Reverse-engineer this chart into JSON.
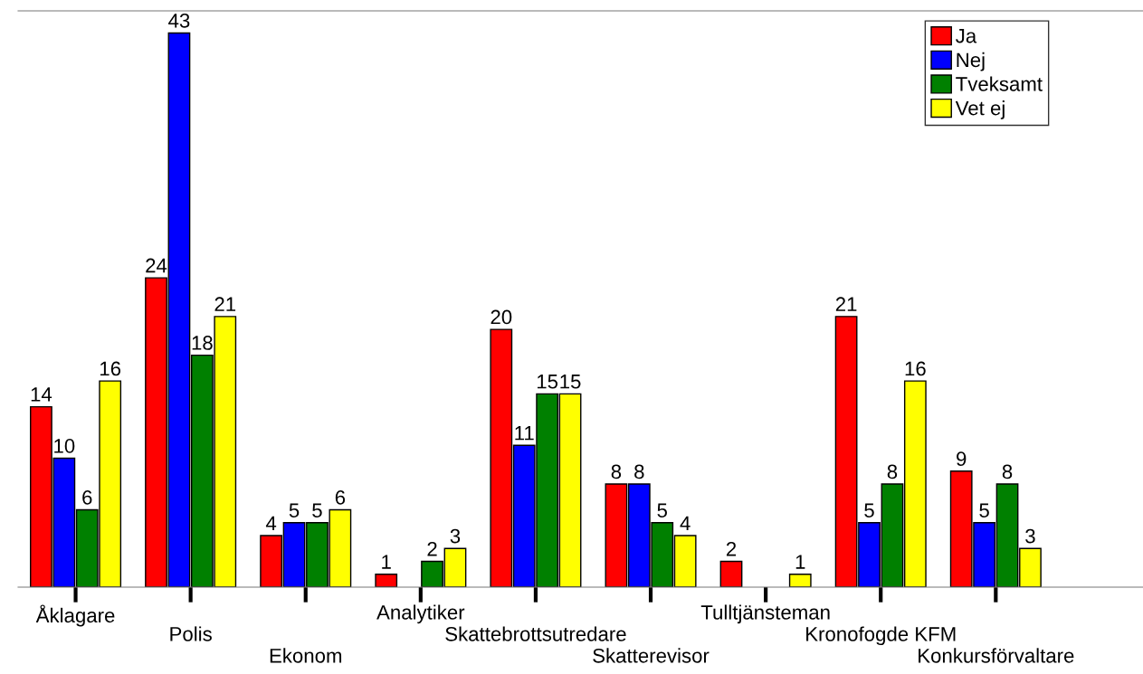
{
  "chart_data": {
    "type": "bar",
    "categories": [
      "Åklagare",
      "Polis",
      "Ekonom",
      "Analytiker",
      "Skattebrottsutredare",
      "Skatterevisor",
      "Tulltjänsteman",
      "Kronofogde KFM",
      "Konkursförvaltare"
    ],
    "series": [
      {
        "name": "Ja",
        "color": "#ff0000",
        "values": [
          14,
          24,
          4,
          1,
          20,
          8,
          2,
          21,
          9
        ],
        "value_labels": [
          "14",
          "24",
          "4",
          "1",
          "20",
          "8",
          "2",
          "21",
          "9"
        ]
      },
      {
        "name": "Nej",
        "color": "#0000ff",
        "values": [
          10,
          43,
          5,
          0,
          11,
          8,
          0,
          5,
          5
        ],
        "value_labels": [
          "10",
          "43",
          "5",
          null,
          "11",
          "8",
          null,
          "5",
          "5"
        ]
      },
      {
        "name": "Tveksamt",
        "color": "#008000",
        "values": [
          6,
          18,
          5,
          2,
          15,
          5,
          0,
          8,
          8
        ],
        "value_labels": [
          "6",
          "18",
          "5",
          "2",
          "15",
          "5",
          null,
          "8",
          "8"
        ]
      },
      {
        "name": "Vet ej",
        "color": "#ffff00",
        "values": [
          16,
          21,
          6,
          3,
          15,
          4,
          1,
          16,
          3
        ],
        "value_labels": [
          "16",
          "21",
          "6",
          "3",
          "15",
          "4",
          "1",
          "16",
          "3"
        ]
      }
    ],
    "legend": "top right",
    "grid": false
  }
}
